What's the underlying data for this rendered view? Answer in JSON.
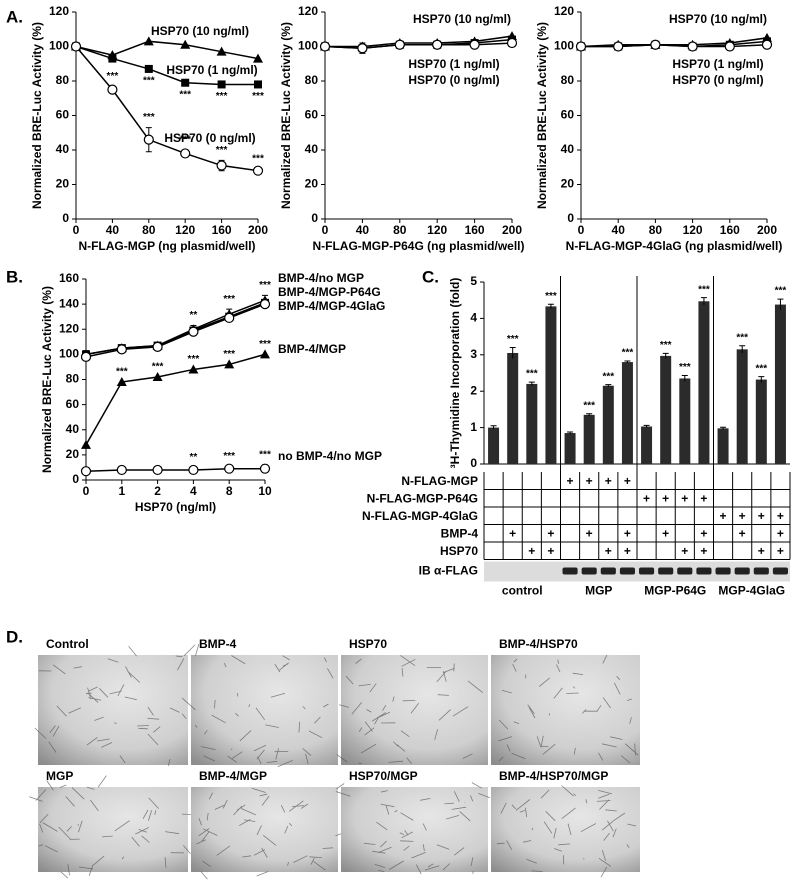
{
  "panel_labels": [
    "A.",
    "B.",
    "C.",
    "D."
  ],
  "chart_data": [
    {
      "type": "line",
      "xlabel": "N-FLAG-MGP (ng plasmid/well)",
      "ylabel": "Normalized BRE-Luc Activity (%)",
      "x": [
        0,
        40,
        80,
        120,
        160,
        200
      ],
      "xlim": [
        0,
        200
      ],
      "xticks": [
        0,
        40,
        80,
        120,
        160,
        200
      ],
      "ylim": [
        0,
        120
      ],
      "yticks": [
        0,
        20,
        40,
        60,
        80,
        100,
        120
      ],
      "series": [
        {
          "name": "HSP70 (10 ng/ml)",
          "marker": "triangle",
          "color": "#000000",
          "values": [
            100,
            95,
            103,
            101,
            97,
            93
          ]
        },
        {
          "name": "HSP70 (1 ng/ml)",
          "marker": "square",
          "color": "#000000",
          "values": [
            100,
            93,
            87,
            79,
            78,
            78
          ],
          "significance": [
            null,
            null,
            "***",
            "***",
            "***",
            "***"
          ]
        },
        {
          "name": "HSP70 (0 ng/ml)",
          "marker": "circle-open",
          "color": "#000000",
          "values": [
            100,
            75,
            46,
            38,
            31,
            28
          ],
          "errors": [
            0,
            2,
            7,
            2,
            3,
            1
          ],
          "significance": [
            null,
            "***",
            "***",
            "***",
            "***",
            "***"
          ]
        }
      ]
    },
    {
      "type": "line",
      "xlabel": "N-FLAG-MGP-P64G (ng plasmid/well)",
      "ylabel": "Normalized BRE-Luc Activity (%)",
      "x": [
        0,
        40,
        80,
        120,
        160,
        200
      ],
      "xlim": [
        0,
        200
      ],
      "xticks": [
        0,
        40,
        80,
        120,
        160,
        200
      ],
      "ylim": [
        0,
        120
      ],
      "yticks": [
        0,
        20,
        40,
        60,
        80,
        100,
        120
      ],
      "series": [
        {
          "name": "HSP70 (10 ng/ml)",
          "marker": "triangle",
          "color": "#000000",
          "values": [
            100,
            100,
            102,
            102,
            103,
            106
          ]
        },
        {
          "name": "HSP70 (1 ng/ml)",
          "marker": "square",
          "color": "#000000",
          "values": [
            100,
            99,
            101,
            101,
            102,
            104
          ]
        },
        {
          "name": "HSP70 (0 ng/ml)",
          "marker": "circle-open",
          "color": "#000000",
          "values": [
            100,
            99,
            101,
            101,
            101,
            102
          ],
          "errors": [
            0,
            3,
            1,
            1,
            1,
            2
          ]
        }
      ]
    },
    {
      "type": "line",
      "xlabel": "N-FLAG-MGP-4GlaG (ng plasmid/well)",
      "ylabel": "Normalized BRE-Luc Activity (%)",
      "x": [
        0,
        40,
        80,
        120,
        160,
        200
      ],
      "xlim": [
        0,
        200
      ],
      "xticks": [
        0,
        40,
        80,
        120,
        160,
        200
      ],
      "ylim": [
        0,
        120
      ],
      "yticks": [
        0,
        20,
        40,
        60,
        80,
        100,
        120
      ],
      "series": [
        {
          "name": "HSP70 (10 ng/ml)",
          "marker": "triangle",
          "color": "#000000",
          "values": [
            100,
            101,
            101,
            101,
            102,
            105
          ]
        },
        {
          "name": "HSP70 (1 ng/ml)",
          "marker": "square",
          "color": "#000000",
          "values": [
            100,
            100,
            101,
            100,
            101,
            103
          ]
        },
        {
          "name": "HSP70 (0 ng/ml)",
          "marker": "circle-open",
          "color": "#000000",
          "values": [
            100,
            100,
            101,
            100,
            100,
            101
          ],
          "errors": [
            0,
            2,
            1,
            1,
            1,
            1
          ]
        }
      ]
    },
    {
      "type": "line",
      "xlabel": "HSP70 (ng/ml)",
      "ylabel": "Normalized BRE-Luc Activity (%)",
      "categories": [
        "0",
        "1",
        "2",
        "4",
        "8",
        "10"
      ],
      "ylim": [
        0,
        160
      ],
      "yticks": [
        0,
        20,
        40,
        60,
        80,
        100,
        120,
        140,
        160
      ],
      "series": [
        {
          "name": "BMP-4/no MGP",
          "marker": "triangle",
          "color": "#000000",
          "values": [
            100,
            105,
            107,
            120,
            132,
            143
          ],
          "errors": [
            3,
            2,
            2,
            3,
            4,
            4
          ],
          "significance": [
            null,
            null,
            null,
            "**",
            "***",
            "***"
          ]
        },
        {
          "name": "BMP-4/MGP-P64G",
          "marker": "square",
          "color": "#000000",
          "values": [
            100,
            105,
            107,
            119,
            130,
            141
          ]
        },
        {
          "name": "BMP-4/MGP-4GlaG",
          "marker": "circle-open",
          "color": "#000000",
          "values": [
            98,
            104,
            106,
            118,
            129,
            140
          ]
        },
        {
          "name": "BMP-4/MGP",
          "marker": "triangle",
          "color": "#000000",
          "values": [
            28,
            78,
            82,
            88,
            92,
            100
          ],
          "significance": [
            null,
            "***",
            "***",
            "***",
            "***",
            "***"
          ]
        },
        {
          "name": "no BMP-4/no MGP",
          "marker": "circle-open",
          "color": "#000000",
          "values": [
            7,
            8,
            8,
            8,
            9,
            9
          ],
          "errors": [
            2,
            2,
            2,
            2,
            2,
            3
          ],
          "significance": [
            null,
            null,
            null,
            "**",
            "***",
            "***"
          ]
        }
      ]
    },
    {
      "type": "bar",
      "ylabel": "³H-Thymidine Incorporation (fold)",
      "color": "#2b2b2b",
      "categories": [
        null,
        null,
        null,
        null,
        null,
        null,
        null,
        null,
        null,
        null,
        null,
        null,
        null,
        null,
        null,
        null
      ],
      "ylim": [
        0,
        5
      ],
      "yticks": [
        0,
        1,
        2,
        3,
        4,
        5
      ],
      "values": [
        1.0,
        3.05,
        2.2,
        4.33,
        0.85,
        1.35,
        2.15,
        2.8,
        1.03,
        2.97,
        2.35,
        4.47,
        0.98,
        3.15,
        2.32,
        4.38
      ],
      "errors": [
        0.05,
        0.15,
        0.05,
        0.06,
        0.03,
        0.03,
        0.03,
        0.03,
        0.03,
        0.07,
        0.08,
        0.1,
        0.03,
        0.1,
        0.08,
        0.15
      ],
      "significance": [
        null,
        "***",
        "***",
        "***",
        null,
        "***",
        "***",
        "***",
        null,
        "***",
        "***",
        "***",
        null,
        "***",
        "***",
        "***"
      ]
    }
  ],
  "table": {
    "rows": [
      {
        "label": "N-FLAG-MGP",
        "cells": [
          null,
          null,
          null,
          null,
          "+",
          "+",
          "+",
          "+",
          null,
          null,
          null,
          null,
          null,
          null,
          null,
          null
        ]
      },
      {
        "label": "N-FLAG-MGP-P64G",
        "cells": [
          null,
          null,
          null,
          null,
          null,
          null,
          null,
          null,
          "+",
          "+",
          "+",
          "+",
          null,
          null,
          null,
          null
        ]
      },
      {
        "label": "N-FLAG-MGP-4GlaG",
        "cells": [
          null,
          null,
          null,
          null,
          null,
          null,
          null,
          null,
          null,
          null,
          null,
          null,
          "+",
          "+",
          "+",
          "+"
        ]
      },
      {
        "label": "BMP-4",
        "cells": [
          null,
          "+",
          null,
          "+",
          null,
          "+",
          null,
          "+",
          null,
          "+",
          null,
          "+",
          null,
          "+",
          null,
          "+"
        ]
      },
      {
        "label": "HSP70",
        "cells": [
          null,
          null,
          "+",
          "+",
          null,
          null,
          "+",
          "+",
          null,
          null,
          "+",
          "+",
          null,
          null,
          "+",
          "+"
        ]
      }
    ]
  },
  "blot": {
    "label": "IB α-FLAG",
    "groups": [
      "control",
      "MGP",
      "MGP-P64G",
      "MGP-4GlaG"
    ]
  },
  "images": [
    {
      "caption": "Control"
    },
    {
      "caption": "BMP-4"
    },
    {
      "caption": "HSP70"
    },
    {
      "caption": "BMP-4/HSP70"
    },
    {
      "caption": "MGP"
    },
    {
      "caption": "BMP-4/MGP"
    },
    {
      "caption": "HSP70/MGP"
    },
    {
      "caption": "BMP-4/HSP70/MGP"
    }
  ]
}
